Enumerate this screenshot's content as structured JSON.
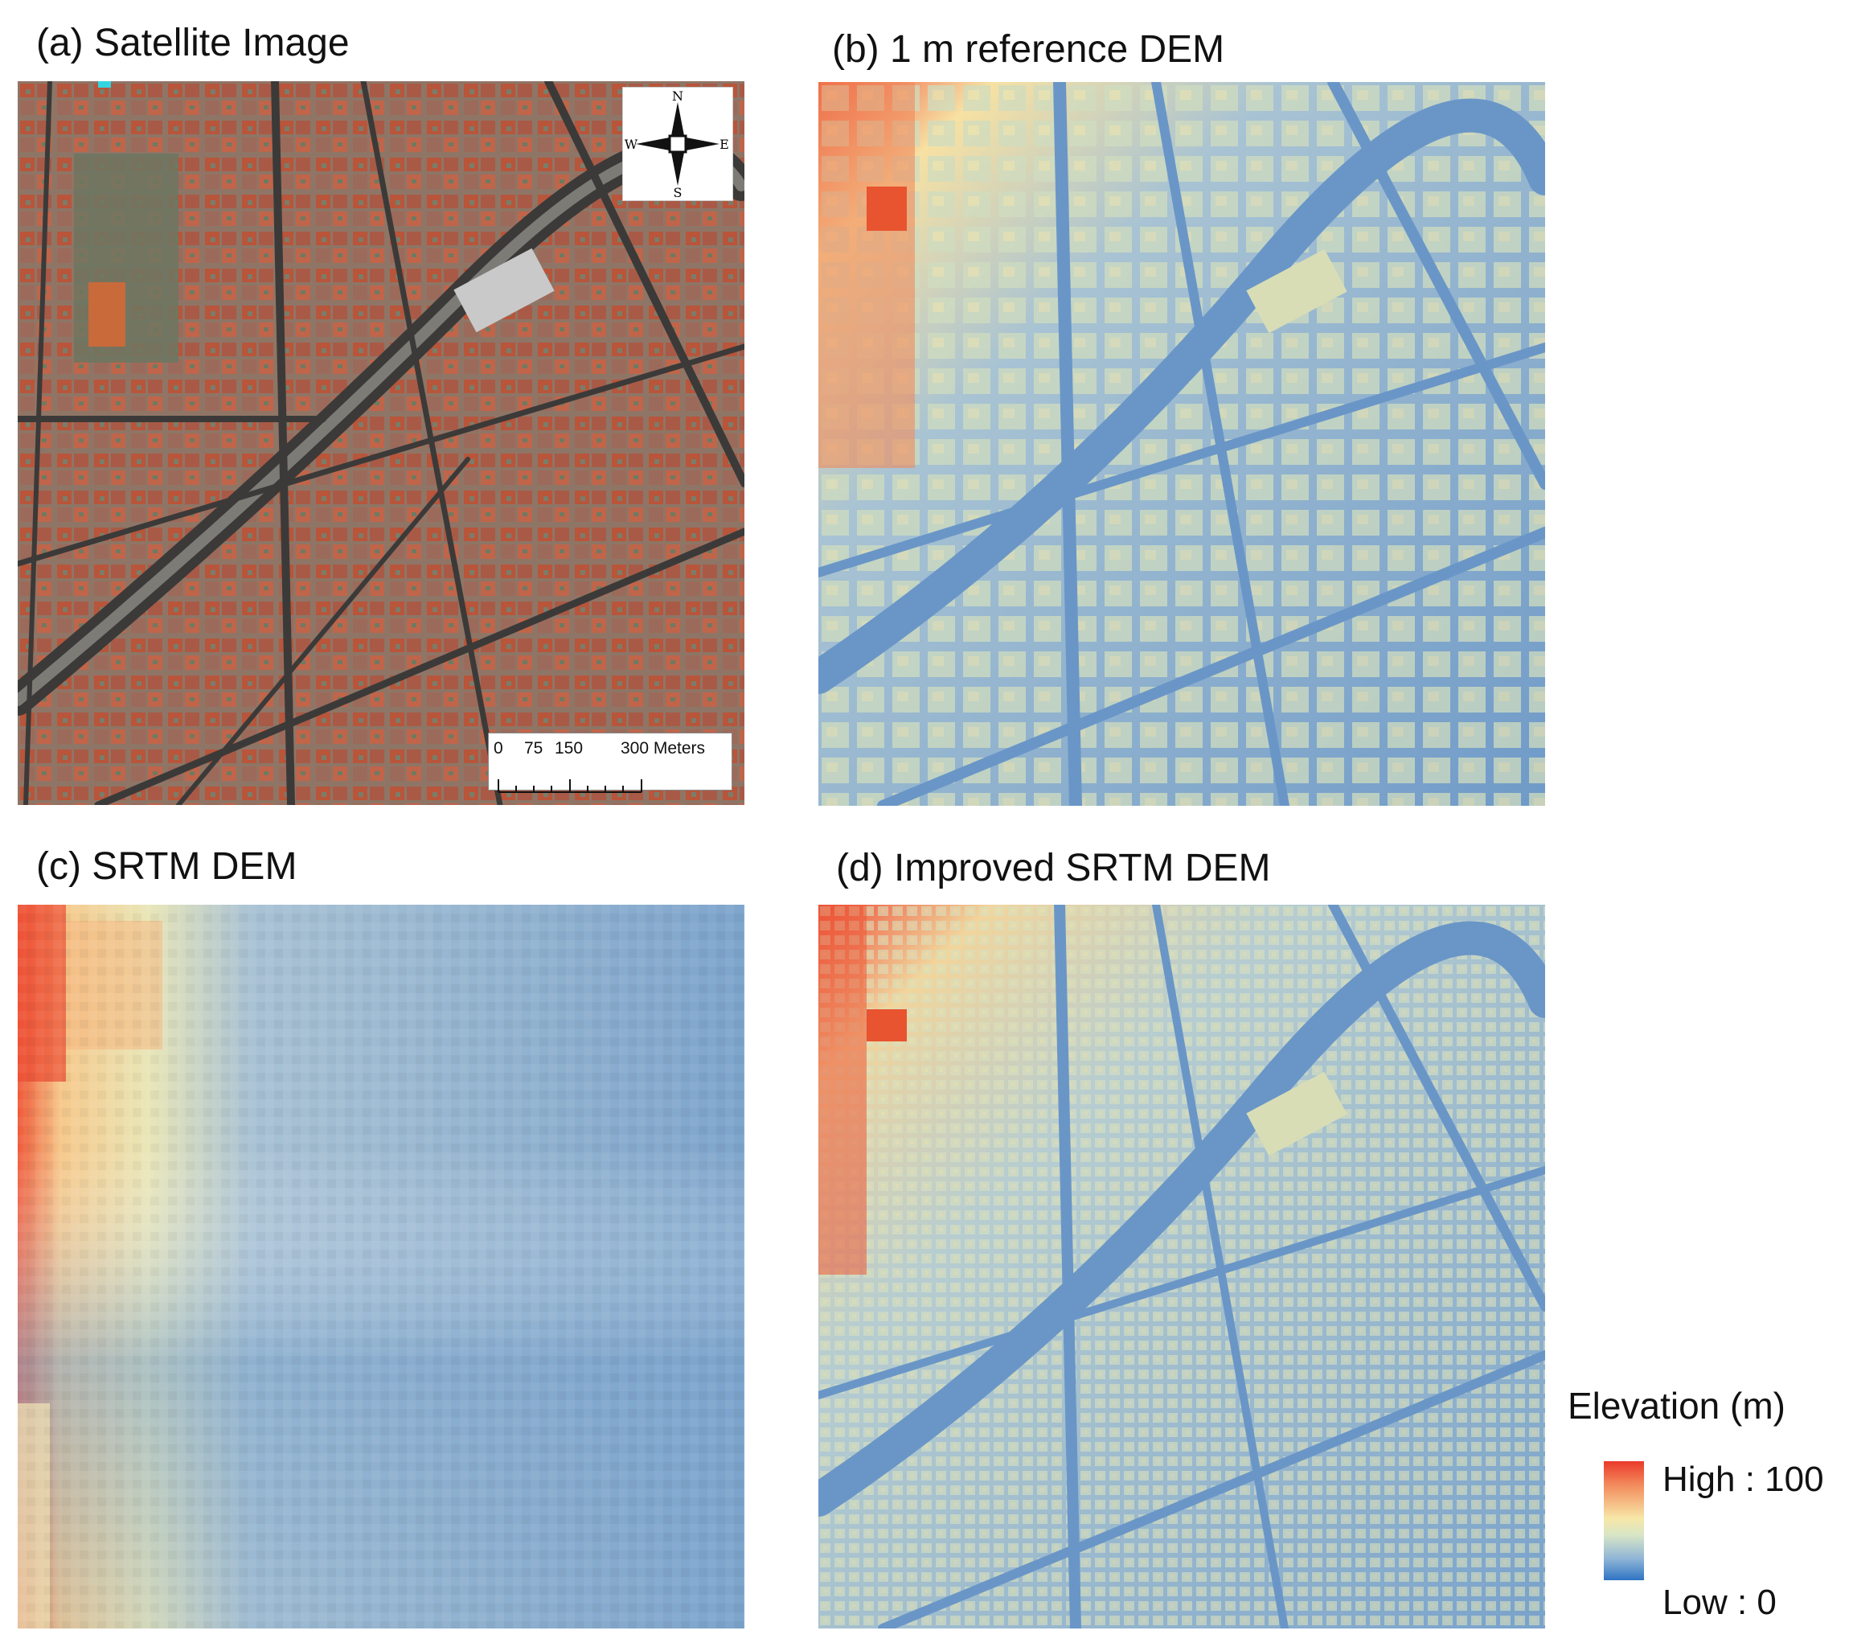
{
  "panels": {
    "a": {
      "title": "(a) Satellite Image"
    },
    "b": {
      "title": "(b) 1 m reference DEM"
    },
    "c": {
      "title": "(c) SRTM DEM"
    },
    "d": {
      "title": "(d) Improved SRTM DEM"
    }
  },
  "compass": {
    "n": "N",
    "s": "S",
    "e": "E",
    "w": "W"
  },
  "scale_bar": {
    "labels": [
      "0",
      "75",
      "150",
      "300 Meters"
    ]
  },
  "legend": {
    "title": "Elevation (m)",
    "high_label": "High : 100",
    "low_label": "Low : 0",
    "high_value": 100,
    "low_value": 0,
    "colors": {
      "high": "#ea3a2a",
      "mid": "#f7e7a8",
      "low": "#2f74c4"
    }
  }
}
